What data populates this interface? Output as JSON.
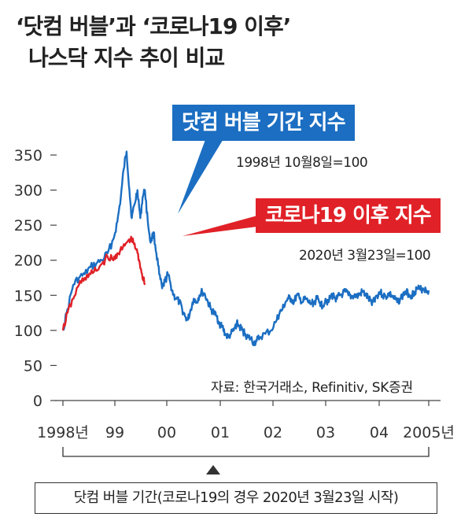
{
  "title": {
    "line1": "‘닷컴 버블’과 ‘코로나19 이후’",
    "line2": "나스닥 지수 추이 비교"
  },
  "callouts": {
    "dotcom": {
      "label": "닷컴 버블 기간 지수",
      "base": "1998년 10월8일=100",
      "color": "#1b6ec2"
    },
    "corona": {
      "label": "코로나19 이후 지수",
      "base": "2020년 3월23일=100",
      "color": "#e02127"
    }
  },
  "source": "자료: 한국거래소, Refinitiv, SK증권",
  "period_note": "닷컴 버블 기간(코로나19의 경우 2020년 3월23일 시작)",
  "chart_data": {
    "type": "line",
    "y_ticks": [
      "0",
      "50",
      "100",
      "150",
      "200",
      "250",
      "300",
      "350"
    ],
    "ylim": [
      0,
      370
    ],
    "x_ticks": [
      "1998년",
      "99",
      "00",
      "01",
      "02",
      "03",
      "04",
      "2005년"
    ],
    "xlim": [
      1998.77,
      2005.15
    ],
    "series": [
      {
        "name": "닷컴 버블 기간 지수",
        "color": "#1b6ec2",
        "x": [
          1998.77,
          1998.85,
          1998.95,
          1999.05,
          1999.15,
          1999.25,
          1999.35,
          1999.45,
          1999.55,
          1999.65,
          1999.72,
          1999.78,
          1999.83,
          1999.88,
          1999.93,
          1999.97,
          2000.02,
          2000.07,
          2000.12,
          2000.16,
          2000.2,
          2000.25,
          2000.3,
          2000.35,
          2000.4,
          2000.45,
          2000.5,
          2000.55,
          2000.6,
          2000.65,
          2000.7,
          2000.75,
          2000.8,
          2000.85,
          2000.9,
          2000.95,
          2001.0,
          2001.05,
          2001.1,
          2001.15,
          2001.2,
          2001.25,
          2001.3,
          2001.35,
          2001.4,
          2001.45,
          2001.5,
          2001.55,
          2001.6,
          2001.65,
          2001.7,
          2001.75,
          2001.8,
          2001.85,
          2001.9,
          2001.95,
          2002.0,
          2002.05,
          2002.1,
          2002.15,
          2002.2,
          2002.3,
          2002.4,
          2002.5,
          2002.55,
          2002.6,
          2002.65,
          2002.7,
          2002.75,
          2002.8,
          2002.85,
          2002.9,
          2002.95,
          2003.0,
          2003.05,
          2003.1,
          2003.15,
          2003.2,
          2003.25,
          2003.3,
          2003.35,
          2003.4,
          2003.45,
          2003.5,
          2003.55,
          2003.6,
          2003.65,
          2003.7,
          2003.75,
          2003.8,
          2003.85,
          2003.9,
          2003.95,
          2004.0,
          2004.05,
          2004.1,
          2004.15,
          2004.2,
          2004.25,
          2004.3,
          2004.35,
          2004.4,
          2004.45,
          2004.5,
          2004.55,
          2004.6,
          2004.65,
          2004.7,
          2004.75,
          2004.8,
          2004.85,
          2004.9,
          2004.95,
          2005.0,
          2005.05,
          2005.1,
          2005.15
        ],
        "values": [
          100,
          130,
          165,
          175,
          180,
          190,
          195,
          200,
          210,
          230,
          255,
          290,
          330,
          355,
          300,
          260,
          280,
          300,
          260,
          290,
          300,
          255,
          225,
          240,
          210,
          180,
          160,
          170,
          180,
          165,
          150,
          145,
          140,
          130,
          120,
          115,
          130,
          145,
          140,
          150,
          155,
          150,
          140,
          130,
          125,
          120,
          110,
          105,
          95,
          90,
          95,
          100,
          110,
          105,
          100,
          95,
          90,
          88,
          82,
          85,
          90,
          95,
          100,
          115,
          125,
          130,
          140,
          145,
          145,
          140,
          150,
          145,
          140,
          145,
          140,
          138,
          140,
          145,
          140,
          135,
          145,
          140,
          150,
          148,
          145,
          150,
          152,
          155,
          150,
          148,
          150,
          148,
          152,
          155,
          150,
          145,
          140,
          145,
          150,
          155,
          150,
          148,
          152,
          150,
          145,
          140,
          145,
          150,
          155,
          152,
          150,
          155,
          160,
          158,
          160,
          158,
          157
        ]
      },
      {
        "name": "코로나19 이후 지수",
        "color": "#e02127",
        "x": [
          1998.77,
          1998.85,
          1998.95,
          1999.05,
          1999.15,
          1999.25,
          1999.35,
          1999.45,
          1999.55,
          1999.65,
          1999.72,
          1999.8,
          1999.88,
          1999.95,
          2000.0,
          2000.05,
          2000.1,
          2000.15,
          2000.2
        ],
        "values": [
          100,
          125,
          145,
          165,
          175,
          180,
          185,
          195,
          205,
          200,
          210,
          215,
          225,
          230,
          225,
          215,
          200,
          180,
          165
        ]
      }
    ]
  }
}
